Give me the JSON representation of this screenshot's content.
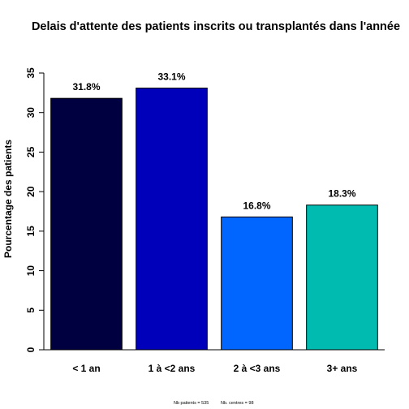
{
  "chart_data": {
    "type": "bar",
    "title": "Delais d'attente des patients inscrits ou transplantés dans l'année",
    "ylabel": "Pourcentage des patients",
    "xlabel": "",
    "ylim": [
      0,
      35
    ],
    "yticks": [
      0,
      5,
      10,
      15,
      20,
      25,
      30,
      35
    ],
    "categories": [
      "< 1 an",
      "1 à <2 ans",
      "2 à <3 ans",
      "3+ ans"
    ],
    "values": [
      31.8,
      33.1,
      16.8,
      18.3
    ],
    "data_labels": [
      "31.8%",
      "33.1%",
      "16.8%",
      "18.3%"
    ],
    "colors": [
      "#000040",
      "#0000BB",
      "#0066FF",
      "#00BBB0"
    ],
    "grid": false
  },
  "footnote": {
    "patients": "Nb patients =  535",
    "centres": "Nb. centres =  98"
  }
}
